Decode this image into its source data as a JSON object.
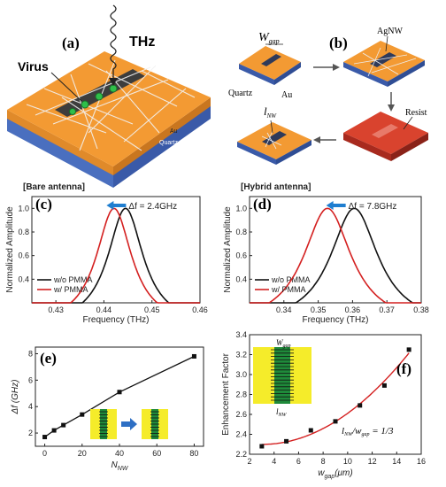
{
  "figure": {
    "panel_a": {
      "label": "(a)",
      "thz_label": "THz",
      "virus_label": "Virus",
      "au_label": "Au",
      "quartz_label": "Quartz"
    },
    "panel_b": {
      "label": "(b)",
      "w_gap_label": "W",
      "w_gap_sub": "gap",
      "agnw_label": "AgNW",
      "quartz_label": "Quartz",
      "au_label": "Au",
      "resist_label": "Resist",
      "l_nw_label": "l",
      "l_nw_sub": "NW"
    }
  },
  "chart_data": [
    {
      "id": "c",
      "type": "line",
      "panel_label": "(c)",
      "header": "[Bare antenna]",
      "shift_label": "Δf = 2.4GHz",
      "xlabel": "Frequency (THz)",
      "ylabel": "Normalized Amplitude",
      "xlim": [
        0.425,
        0.46
      ],
      "ylim": [
        0.2,
        1.1
      ],
      "xticks": [
        "0.43",
        "0.44",
        "0.45",
        "0.46"
      ],
      "yticks": [
        "0.4",
        "0.6",
        "0.8",
        "1.0"
      ],
      "series": [
        {
          "name": "w/o PMMA",
          "color": "#111111",
          "peak": 0.4445,
          "hwhm": 0.0045
        },
        {
          "name": "w/  PMMA",
          "color": "#d42020",
          "peak": 0.4421,
          "hwhm": 0.0045
        }
      ]
    },
    {
      "id": "d",
      "type": "line",
      "panel_label": "(d)",
      "header": "[Hybrid antenna]",
      "shift_label": "Δf = 7.8GHz",
      "xlabel": "Frequency (THz)",
      "ylabel": "Normalized Amplitude",
      "xlim": [
        0.33,
        0.38
      ],
      "ylim": [
        0.2,
        1.1
      ],
      "xticks": [
        "0.34",
        "0.35",
        "0.36",
        "0.37",
        "0.38"
      ],
      "yticks": [
        "0.4",
        "0.6",
        "0.8",
        "1.0"
      ],
      "series": [
        {
          "name": "w/o PMMA",
          "color": "#111111",
          "peak": 0.3605,
          "hwhm": 0.0085
        },
        {
          "name": "w/  PMMA",
          "color": "#d42020",
          "peak": 0.3527,
          "hwhm": 0.0085
        }
      ]
    },
    {
      "id": "e",
      "type": "line",
      "panel_label": "(e)",
      "xlabel": "N",
      "xlabel_sub": "NW",
      "ylabel": "Δf (GHz)",
      "xlim": [
        -5,
        85
      ],
      "ylim": [
        1,
        8.5
      ],
      "xticks": [
        "0",
        "20",
        "40",
        "60",
        "80"
      ],
      "yticks": [
        "2",
        "4",
        "6",
        "8"
      ],
      "x": [
        0,
        5,
        10,
        20,
        40,
        80
      ],
      "y": [
        1.7,
        2.2,
        2.6,
        3.4,
        5.1,
        7.8
      ]
    },
    {
      "id": "f",
      "type": "scatter",
      "panel_label": "(f)",
      "xlabel": "w",
      "xlabel_sub": "gap",
      "xlabel_unit": "(μm)",
      "ylabel": "Enhancement Factor",
      "xlim": [
        2,
        16
      ],
      "ylim": [
        2.2,
        3.4
      ],
      "xticks": [
        "2",
        "4",
        "6",
        "8",
        "10",
        "12",
        "14",
        "16"
      ],
      "yticks": [
        "2.2",
        "2.4",
        "2.6",
        "2.8",
        "3.0",
        "3.2",
        "3.4"
      ],
      "x": [
        3,
        5,
        7,
        9,
        11,
        13,
        15
      ],
      "y": [
        2.28,
        2.33,
        2.44,
        2.53,
        2.69,
        2.89,
        3.25
      ],
      "ratio_label": "l",
      "ratio_sub1": "NW",
      "ratio_mid": "/w",
      "ratio_sub2": "gap",
      "ratio_value": "= 1/3",
      "inset_w_label": "W",
      "inset_w_sub": "gap",
      "inset_l_label": "l",
      "inset_l_sub": "NW"
    }
  ]
}
